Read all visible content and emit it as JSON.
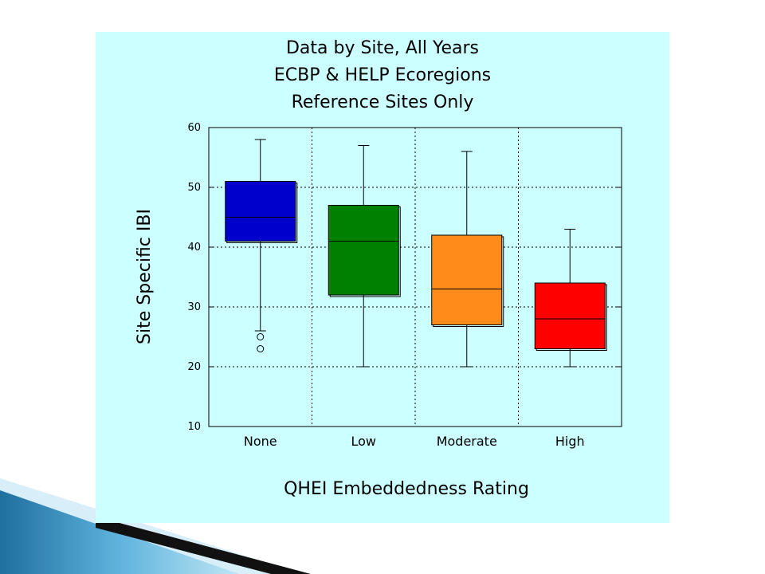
{
  "chart_data": {
    "type": "box",
    "title_lines": [
      "Data by Site, All Years",
      "ECBP & HELP Ecoregions",
      "Reference Sites Only"
    ],
    "xlabel": "QHEI Embeddedness Rating",
    "ylabel": "Site Specific IBI",
    "ylim": [
      10,
      60
    ],
    "yticks": [
      10,
      20,
      30,
      40,
      50,
      60
    ],
    "grid": true,
    "categories": [
      "None",
      "Low",
      "Moderate",
      "High"
    ],
    "boxes": [
      {
        "category": "None",
        "min": 26,
        "q1": 41,
        "median": 45,
        "q3": 51,
        "max": 58,
        "outliers": [
          25,
          23
        ],
        "color": "#0000cc"
      },
      {
        "category": "Low",
        "min": 20,
        "q1": 32,
        "median": 41,
        "q3": 47,
        "max": 57,
        "outliers": [],
        "color": "#008000"
      },
      {
        "category": "Moderate",
        "min": 20,
        "q1": 27,
        "median": 33,
        "q3": 42,
        "max": 56,
        "outliers": [],
        "color": "#ff8c1a"
      },
      {
        "category": "High",
        "min": 20,
        "q1": 23,
        "median": 28,
        "q3": 34,
        "max": 43,
        "outliers": [],
        "color": "#ff0000"
      }
    ]
  },
  "colors": {
    "panel_background": "#ccffff",
    "slide_accent": "#2f8fc0"
  }
}
